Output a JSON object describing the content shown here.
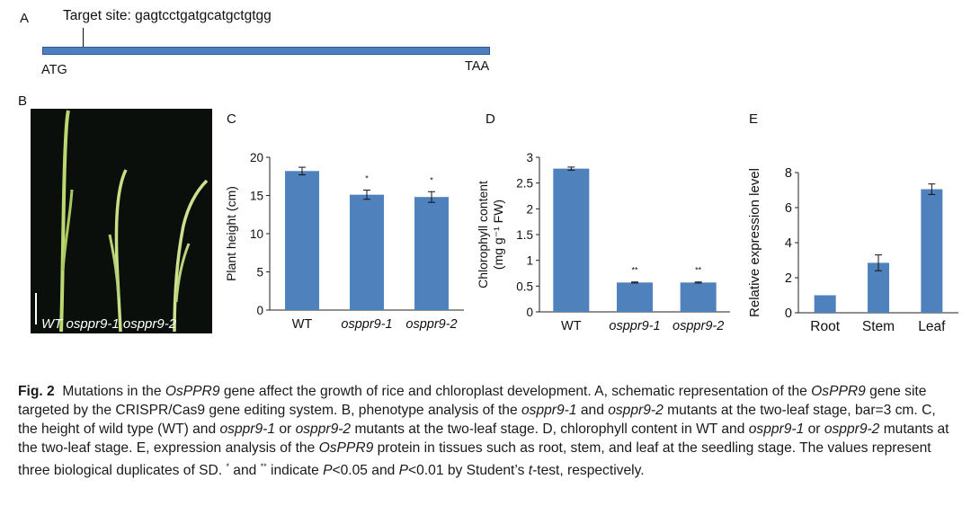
{
  "panelA": {
    "letter": "A",
    "target_label": "Target site: gagtcctgatgcatgctgtgg",
    "start_codon": "ATG",
    "stop_codon": "TAA"
  },
  "panelB": {
    "letter": "B",
    "photo_label": "WT osppr9-1 osppr9-2"
  },
  "colors": {
    "bar": "#4f81bd",
    "gene": "#4d7ec4",
    "photo_bg": "#0b0f0c",
    "seedling": "#b9d46a"
  },
  "chart_data": [
    {
      "panel": "C",
      "type": "bar",
      "categories": [
        "WT",
        "osppr9-1",
        "osppr9-2"
      ],
      "values": [
        18.2,
        15.1,
        14.8
      ],
      "errors": [
        0.5,
        0.6,
        0.7
      ],
      "significance": [
        "",
        "*",
        "*"
      ],
      "ylabel": "Plant height (cm)",
      "ylim": [
        0,
        20
      ],
      "yticks": [
        0,
        5,
        10,
        15,
        20
      ],
      "ytick_labels": [
        "0",
        "5",
        "10",
        "15",
        "20"
      ]
    },
    {
      "panel": "D",
      "type": "bar",
      "categories": [
        "WT",
        "osppr9-1",
        "osppr9-2"
      ],
      "values": [
        2.78,
        0.57,
        0.57
      ],
      "errors": [
        0.03,
        0.01,
        0.01
      ],
      "significance": [
        "",
        "**",
        "**"
      ],
      "ylabel": "Chlorophyll content",
      "ylabel2": "(mg g⁻¹ FW)",
      "ylim": [
        0,
        3
      ],
      "yticks": [
        0,
        0.5,
        1,
        1.5,
        2,
        2.5,
        3
      ],
      "ytick_labels": [
        "0",
        "0.5",
        "1",
        "1.5",
        "2",
        "2.5",
        "3"
      ]
    },
    {
      "panel": "E",
      "type": "bar",
      "categories": [
        "Root",
        "Stem",
        "Leaf"
      ],
      "values": [
        1.0,
        2.85,
        7.05
      ],
      "errors": [
        0,
        0.45,
        0.3
      ],
      "significance": [
        "",
        "",
        ""
      ],
      "ylabel": "Relative expression level",
      "ylim": [
        0,
        8
      ],
      "yticks": [
        0,
        2,
        4,
        6,
        8
      ],
      "ytick_labels": [
        "0",
        "2",
        "4",
        "6",
        "8"
      ]
    }
  ],
  "caption": {
    "fig": "Fig. 2",
    "s1": "Mutations in the ",
    "g1": "OsPPR9",
    "s2": " gene affect the growth of rice and chloroplast development.  A, schematic representation of the ",
    "g2": "OsPPR9",
    "s3": " gene site targeted by the CRISPR/Cas9 gene editing system.  B, phenotype analysis of the ",
    "m1": "osppr9-1",
    "s4": " and ",
    "m2": "osppr9-2",
    "s5": " mutants at the two-leaf stage, bar=3 cm.  C, the height of wild type (WT) and ",
    "m3": "osppr9-1",
    "s6": " or ",
    "m4": "osppr9-2",
    "s7": " mutants at the two-leaf stage.  D, chlorophyll content in WT and ",
    "m5": "osppr9-1",
    "s8": " or ",
    "m6": "osppr9-2",
    "s9": " mutants at the two-leaf stage.  E, expression analysis of the ",
    "g3": "OsPPR9",
    "s10": " protein in tissues such as root, stem, and leaf at the seedling stage.  The values represent three biological duplicates of SD.  ",
    "star1": "*",
    "s11": " and ",
    "star2": "**",
    "s12": " indicate ",
    "p1": "P",
    "s13": "<0.05 and ",
    "p2": "P",
    "s14": "<0.01 by Student’s ",
    "t": "t",
    "s15": "-test, respectively."
  }
}
